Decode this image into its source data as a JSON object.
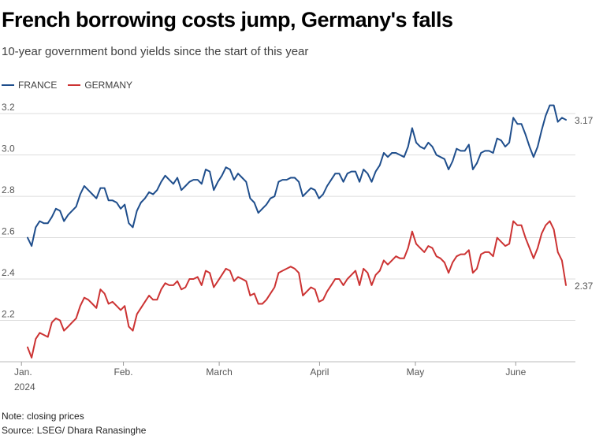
{
  "header": {
    "title": "French borrowing costs jump, Germany's falls",
    "subtitle": "10-year government bond yields since the start of this year"
  },
  "footer": {
    "note": "Note: closing prices",
    "source": "Source: LSEG/ Dhara Ranasinghe"
  },
  "colors": {
    "france": "#1f4e8c",
    "germany": "#cc3333",
    "grid": "#dddddd"
  },
  "chart_data": {
    "type": "line",
    "title": "French borrowing costs jump, Germany's falls",
    "subtitle": "10-year government bond yields since the start of this year",
    "xlabel": "",
    "ylabel": "",
    "ylim": [
      2.0,
      3.25
    ],
    "y_ticks": [
      2.2,
      2.4,
      2.6,
      2.8,
      3.0,
      3.2
    ],
    "y_tick_labels": [
      "2.2",
      "2.4",
      "2.6",
      "2.8",
      "3.0",
      "3.2"
    ],
    "x_unit": "trading day index (0 = Jan. 2, 2024)",
    "xlim": [
      0,
      118
    ],
    "x_ticks": [
      {
        "x": -1,
        "label": "Jan.",
        "sublabel": "2024"
      },
      {
        "x": 21,
        "label": "Feb."
      },
      {
        "x": 42,
        "label": "March"
      },
      {
        "x": 64,
        "label": "April"
      },
      {
        "x": 85,
        "label": "May"
      },
      {
        "x": 107,
        "label": "June"
      }
    ],
    "legend": "top-left",
    "series": [
      {
        "name": "FRANCE",
        "end_label": "3.17",
        "values": [
          2.6,
          2.56,
          2.65,
          2.68,
          2.67,
          2.67,
          2.7,
          2.74,
          2.73,
          2.68,
          2.71,
          2.73,
          2.75,
          2.81,
          2.85,
          2.83,
          2.81,
          2.79,
          2.84,
          2.84,
          2.78,
          2.78,
          2.77,
          2.74,
          2.76,
          2.67,
          2.65,
          2.73,
          2.77,
          2.79,
          2.82,
          2.81,
          2.83,
          2.87,
          2.9,
          2.88,
          2.86,
          2.89,
          2.83,
          2.85,
          2.87,
          2.88,
          2.88,
          2.86,
          2.93,
          2.92,
          2.83,
          2.87,
          2.9,
          2.94,
          2.93,
          2.88,
          2.91,
          2.89,
          2.87,
          2.79,
          2.77,
          2.72,
          2.74,
          2.76,
          2.79,
          2.8,
          2.87,
          2.88,
          2.88,
          2.89,
          2.89,
          2.87,
          2.8,
          2.82,
          2.84,
          2.83,
          2.79,
          2.81,
          2.85,
          2.88,
          2.91,
          2.91,
          2.87,
          2.91,
          2.92,
          2.92,
          2.87,
          2.93,
          2.91,
          2.87,
          2.92,
          2.95,
          3.01,
          2.99,
          3.01,
          3.01,
          3.0,
          2.99,
          3.04,
          3.13,
          3.06,
          3.04,
          3.03,
          3.06,
          3.04,
          3.0,
          2.99,
          2.98,
          2.93,
          2.97,
          3.03,
          3.02,
          3.02,
          3.05,
          2.93,
          2.96,
          3.01,
          3.02,
          3.02,
          3.01,
          3.08,
          3.07,
          3.04,
          3.06,
          3.18,
          3.15,
          3.15,
          3.1,
          3.04,
          2.99,
          3.04,
          3.12,
          3.19,
          3.24,
          3.24,
          3.16,
          3.18,
          3.17
        ]
      },
      {
        "name": "GERMANY",
        "end_label": "2.37",
        "values": [
          2.07,
          2.02,
          2.11,
          2.14,
          2.13,
          2.12,
          2.19,
          2.21,
          2.2,
          2.15,
          2.17,
          2.19,
          2.21,
          2.27,
          2.31,
          2.3,
          2.28,
          2.26,
          2.35,
          2.33,
          2.28,
          2.29,
          2.27,
          2.25,
          2.27,
          2.17,
          2.15,
          2.23,
          2.26,
          2.29,
          2.32,
          2.3,
          2.3,
          2.35,
          2.38,
          2.37,
          2.37,
          2.39,
          2.35,
          2.36,
          2.4,
          2.4,
          2.41,
          2.37,
          2.44,
          2.43,
          2.36,
          2.39,
          2.42,
          2.45,
          2.44,
          2.39,
          2.41,
          2.4,
          2.39,
          2.32,
          2.33,
          2.28,
          2.28,
          2.3,
          2.33,
          2.36,
          2.43,
          2.44,
          2.45,
          2.46,
          2.45,
          2.43,
          2.32,
          2.34,
          2.36,
          2.35,
          2.29,
          2.3,
          2.34,
          2.37,
          2.4,
          2.4,
          2.37,
          2.4,
          2.42,
          2.44,
          2.37,
          2.45,
          2.43,
          2.37,
          2.42,
          2.44,
          2.49,
          2.47,
          2.49,
          2.51,
          2.5,
          2.5,
          2.55,
          2.63,
          2.57,
          2.55,
          2.53,
          2.56,
          2.55,
          2.51,
          2.5,
          2.48,
          2.43,
          2.48,
          2.51,
          2.52,
          2.52,
          2.54,
          2.43,
          2.45,
          2.52,
          2.53,
          2.53,
          2.51,
          2.6,
          2.58,
          2.56,
          2.57,
          2.68,
          2.66,
          2.66,
          2.6,
          2.55,
          2.5,
          2.55,
          2.62,
          2.66,
          2.68,
          2.64,
          2.53,
          2.49,
          2.37
        ]
      }
    ]
  }
}
